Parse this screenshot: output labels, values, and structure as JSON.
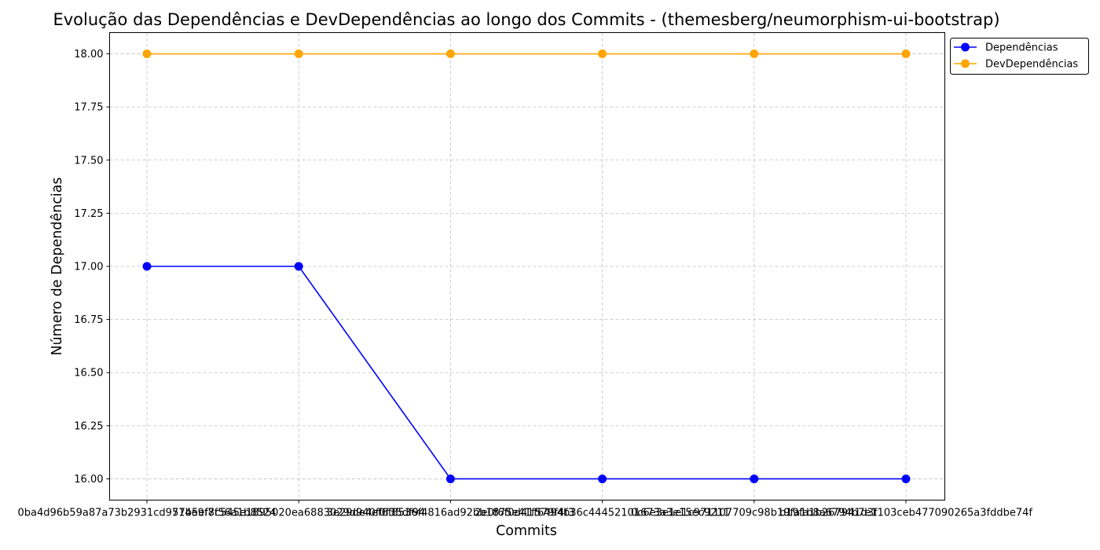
{
  "chart_data": {
    "type": "line",
    "title": "Evolução das Dependências e DevDependências ao longo dos Commits - (themesberg/neumorphism-ui-bootstrap)",
    "xlabel": "Commits",
    "ylabel": "Número de Dependências",
    "x": [
      "0ba4d96b59a87a73b2931cd9714e9f7f56a1b8524",
      "57b5ef8c545e1895020ea6883029d940f0f35df94",
      "3e29de4ef6f8536f4816ad92bb1875e41f579f4f3",
      "2e0f6f0d41f6494b36c44452101673a3e15ec9211",
      "0c6e3e1e1c971107709c98b19fa1b8a6794b7e1",
      "b19fa1b267941d3f103ceb477090265a3fddbe74f"
    ],
    "ylim": [
      15.9,
      18.1
    ],
    "yticks": [
      "16.00",
      "16.25",
      "16.50",
      "16.75",
      "17.00",
      "17.25",
      "17.50",
      "17.75",
      "18.00"
    ],
    "grid": true,
    "legend_position": "upper-right-outside",
    "series": [
      {
        "name": "Dependências",
        "color": "#0000ff",
        "values": [
          17,
          17,
          16,
          16,
          16,
          16
        ]
      },
      {
        "name": "DevDependências",
        "color": "#ffa500",
        "values": [
          18,
          18,
          18,
          18,
          18,
          18
        ]
      }
    ]
  }
}
